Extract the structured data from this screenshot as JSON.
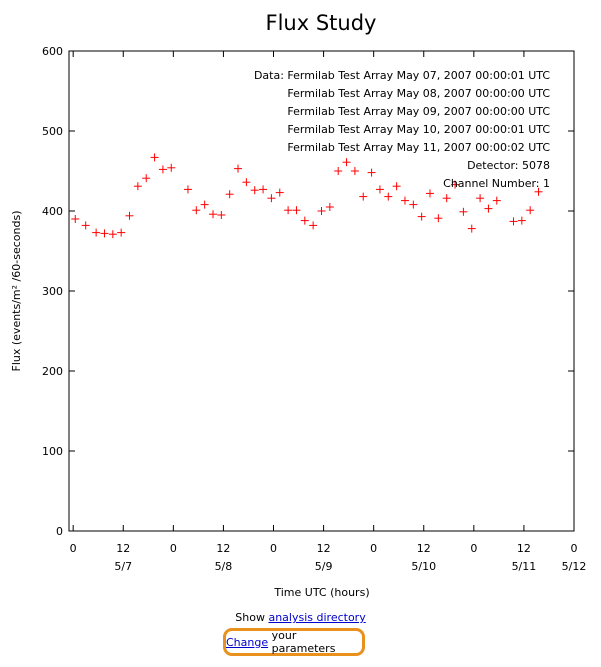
{
  "chart_data": {
    "type": "scatter",
    "title": "Flux Study",
    "xlabel": "Time UTC (hours)",
    "ylabel": "Flux (events/m² /60-seconds)",
    "ylim": [
      0,
      600
    ],
    "yticks": [
      0,
      100,
      200,
      300,
      400,
      500,
      600
    ],
    "xlim": [
      "2007-05-06T23:00",
      "2007-05-12T00:00"
    ],
    "xticks": [
      {
        "at": "2007-05-07T00:00",
        "label": "0",
        "date": ""
      },
      {
        "at": "2007-05-07T12:00",
        "label": "12",
        "date": "5/7"
      },
      {
        "at": "2007-05-08T00:00",
        "label": "0",
        "date": ""
      },
      {
        "at": "2007-05-08T12:00",
        "label": "12",
        "date": "5/8"
      },
      {
        "at": "2007-05-09T00:00",
        "label": "0",
        "date": ""
      },
      {
        "at": "2007-05-09T12:00",
        "label": "12",
        "date": "5/9"
      },
      {
        "at": "2007-05-10T00:00",
        "label": "0",
        "date": ""
      },
      {
        "at": "2007-05-10T12:00",
        "label": "12",
        "date": "5/10"
      },
      {
        "at": "2007-05-11T00:00",
        "label": "0",
        "date": ""
      },
      {
        "at": "2007-05-11T12:00",
        "label": "12",
        "date": "5/11"
      },
      {
        "at": "2007-05-12T00:00",
        "label": "0",
        "date": "5/12"
      }
    ],
    "legend": [
      "Data: Fermilab Test Array May 07, 2007 00:00:01 UTC",
      "Fermilab Test Array May 08, 2007 00:00:00 UTC",
      "Fermilab Test Array May 09, 2007 00:00:00 UTC",
      "Fermilab Test Array May 10, 2007 00:00:01 UTC",
      "Fermilab Test Array May 11, 2007 00:00:02 UTC",
      "Detector: 5078",
      "Channel Number: 1"
    ],
    "legend_position": "top-right",
    "marker": "+",
    "marker_color": "#ff0000",
    "points": [
      {
        "x": "2007-05-07T00:30",
        "y": 390
      },
      {
        "x": "2007-05-07T03:00",
        "y": 382
      },
      {
        "x": "2007-05-07T05:30",
        "y": 373
      },
      {
        "x": "2007-05-07T07:30",
        "y": 372
      },
      {
        "x": "2007-05-07T09:30",
        "y": 371
      },
      {
        "x": "2007-05-07T11:30",
        "y": 373
      },
      {
        "x": "2007-05-07T13:30",
        "y": 394
      },
      {
        "x": "2007-05-07T15:30",
        "y": 431
      },
      {
        "x": "2007-05-07T17:30",
        "y": 441
      },
      {
        "x": "2007-05-07T19:30",
        "y": 467
      },
      {
        "x": "2007-05-07T21:30",
        "y": 452
      },
      {
        "x": "2007-05-07T23:30",
        "y": 454
      },
      {
        "x": "2007-05-08T03:30",
        "y": 427
      },
      {
        "x": "2007-05-08T05:30",
        "y": 401
      },
      {
        "x": "2007-05-08T07:30",
        "y": 408
      },
      {
        "x": "2007-05-08T09:30",
        "y": 396
      },
      {
        "x": "2007-05-08T11:30",
        "y": 395
      },
      {
        "x": "2007-05-08T13:30",
        "y": 421
      },
      {
        "x": "2007-05-08T15:30",
        "y": 453
      },
      {
        "x": "2007-05-08T17:30",
        "y": 436
      },
      {
        "x": "2007-05-08T19:30",
        "y": 426
      },
      {
        "x": "2007-05-08T21:30",
        "y": 427
      },
      {
        "x": "2007-05-08T23:30",
        "y": 416
      },
      {
        "x": "2007-05-09T01:30",
        "y": 423
      },
      {
        "x": "2007-05-09T03:30",
        "y": 401
      },
      {
        "x": "2007-05-09T05:30",
        "y": 401
      },
      {
        "x": "2007-05-09T07:30",
        "y": 388
      },
      {
        "x": "2007-05-09T09:30",
        "y": 382
      },
      {
        "x": "2007-05-09T11:30",
        "y": 400
      },
      {
        "x": "2007-05-09T13:30",
        "y": 405
      },
      {
        "x": "2007-05-09T15:30",
        "y": 450
      },
      {
        "x": "2007-05-09T17:30",
        "y": 461
      },
      {
        "x": "2007-05-09T19:30",
        "y": 450
      },
      {
        "x": "2007-05-09T21:30",
        "y": 418
      },
      {
        "x": "2007-05-09T23:30",
        "y": 448
      },
      {
        "x": "2007-05-10T01:30",
        "y": 427
      },
      {
        "x": "2007-05-10T03:30",
        "y": 418
      },
      {
        "x": "2007-05-10T05:30",
        "y": 431
      },
      {
        "x": "2007-05-10T07:30",
        "y": 413
      },
      {
        "x": "2007-05-10T09:30",
        "y": 408
      },
      {
        "x": "2007-05-10T11:30",
        "y": 393
      },
      {
        "x": "2007-05-10T13:30",
        "y": 422
      },
      {
        "x": "2007-05-10T15:30",
        "y": 391
      },
      {
        "x": "2007-05-10T17:30",
        "y": 416
      },
      {
        "x": "2007-05-10T19:30",
        "y": 433
      },
      {
        "x": "2007-05-10T21:30",
        "y": 399
      },
      {
        "x": "2007-05-10T23:30",
        "y": 378
      },
      {
        "x": "2007-05-11T01:30",
        "y": 416
      },
      {
        "x": "2007-05-11T03:30",
        "y": 403
      },
      {
        "x": "2007-05-11T05:30",
        "y": 413
      },
      {
        "x": "2007-05-11T09:30",
        "y": 387
      },
      {
        "x": "2007-05-11T11:30",
        "y": 388
      },
      {
        "x": "2007-05-11T13:30",
        "y": 401
      },
      {
        "x": "2007-05-11T15:30",
        "y": 424
      }
    ]
  },
  "footer": {
    "show_prefix": "Show",
    "analysis_link": "analysis directory",
    "change_link": "Change",
    "change_suffix": "your parameters"
  },
  "colors": {
    "marker": "#ff0000",
    "link": "#0000cc",
    "highlight_border": "#e8911c"
  }
}
